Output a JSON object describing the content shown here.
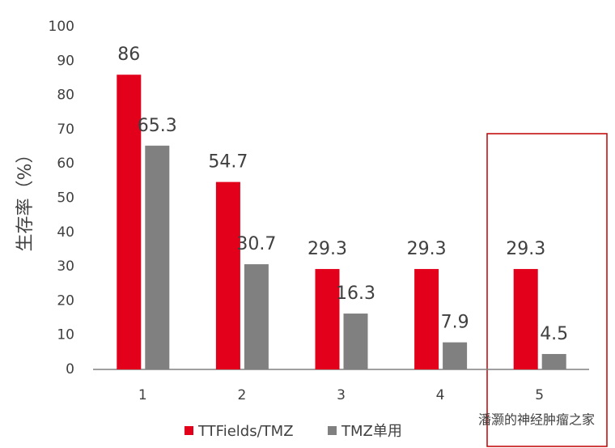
{
  "chart_data": {
    "type": "bar",
    "y_label": "生存率（%）",
    "categories": [
      "1",
      "2",
      "3",
      "4",
      "5"
    ],
    "series": [
      {
        "name": "TTFields/TMZ",
        "color": "#e3001b",
        "values": [
          86,
          54.7,
          29.3,
          29.3,
          29.3
        ]
      },
      {
        "name": "TMZ单用",
        "color": "#808080",
        "values": [
          65.3,
          30.7,
          16.3,
          7.9,
          4.5
        ]
      }
    ],
    "ylim": [
      0,
      100
    ],
    "yticks": [
      0,
      10,
      20,
      30,
      40,
      50,
      60,
      70,
      80,
      90,
      100
    ],
    "watermark": "潘灏的神经肿瘤之家"
  }
}
